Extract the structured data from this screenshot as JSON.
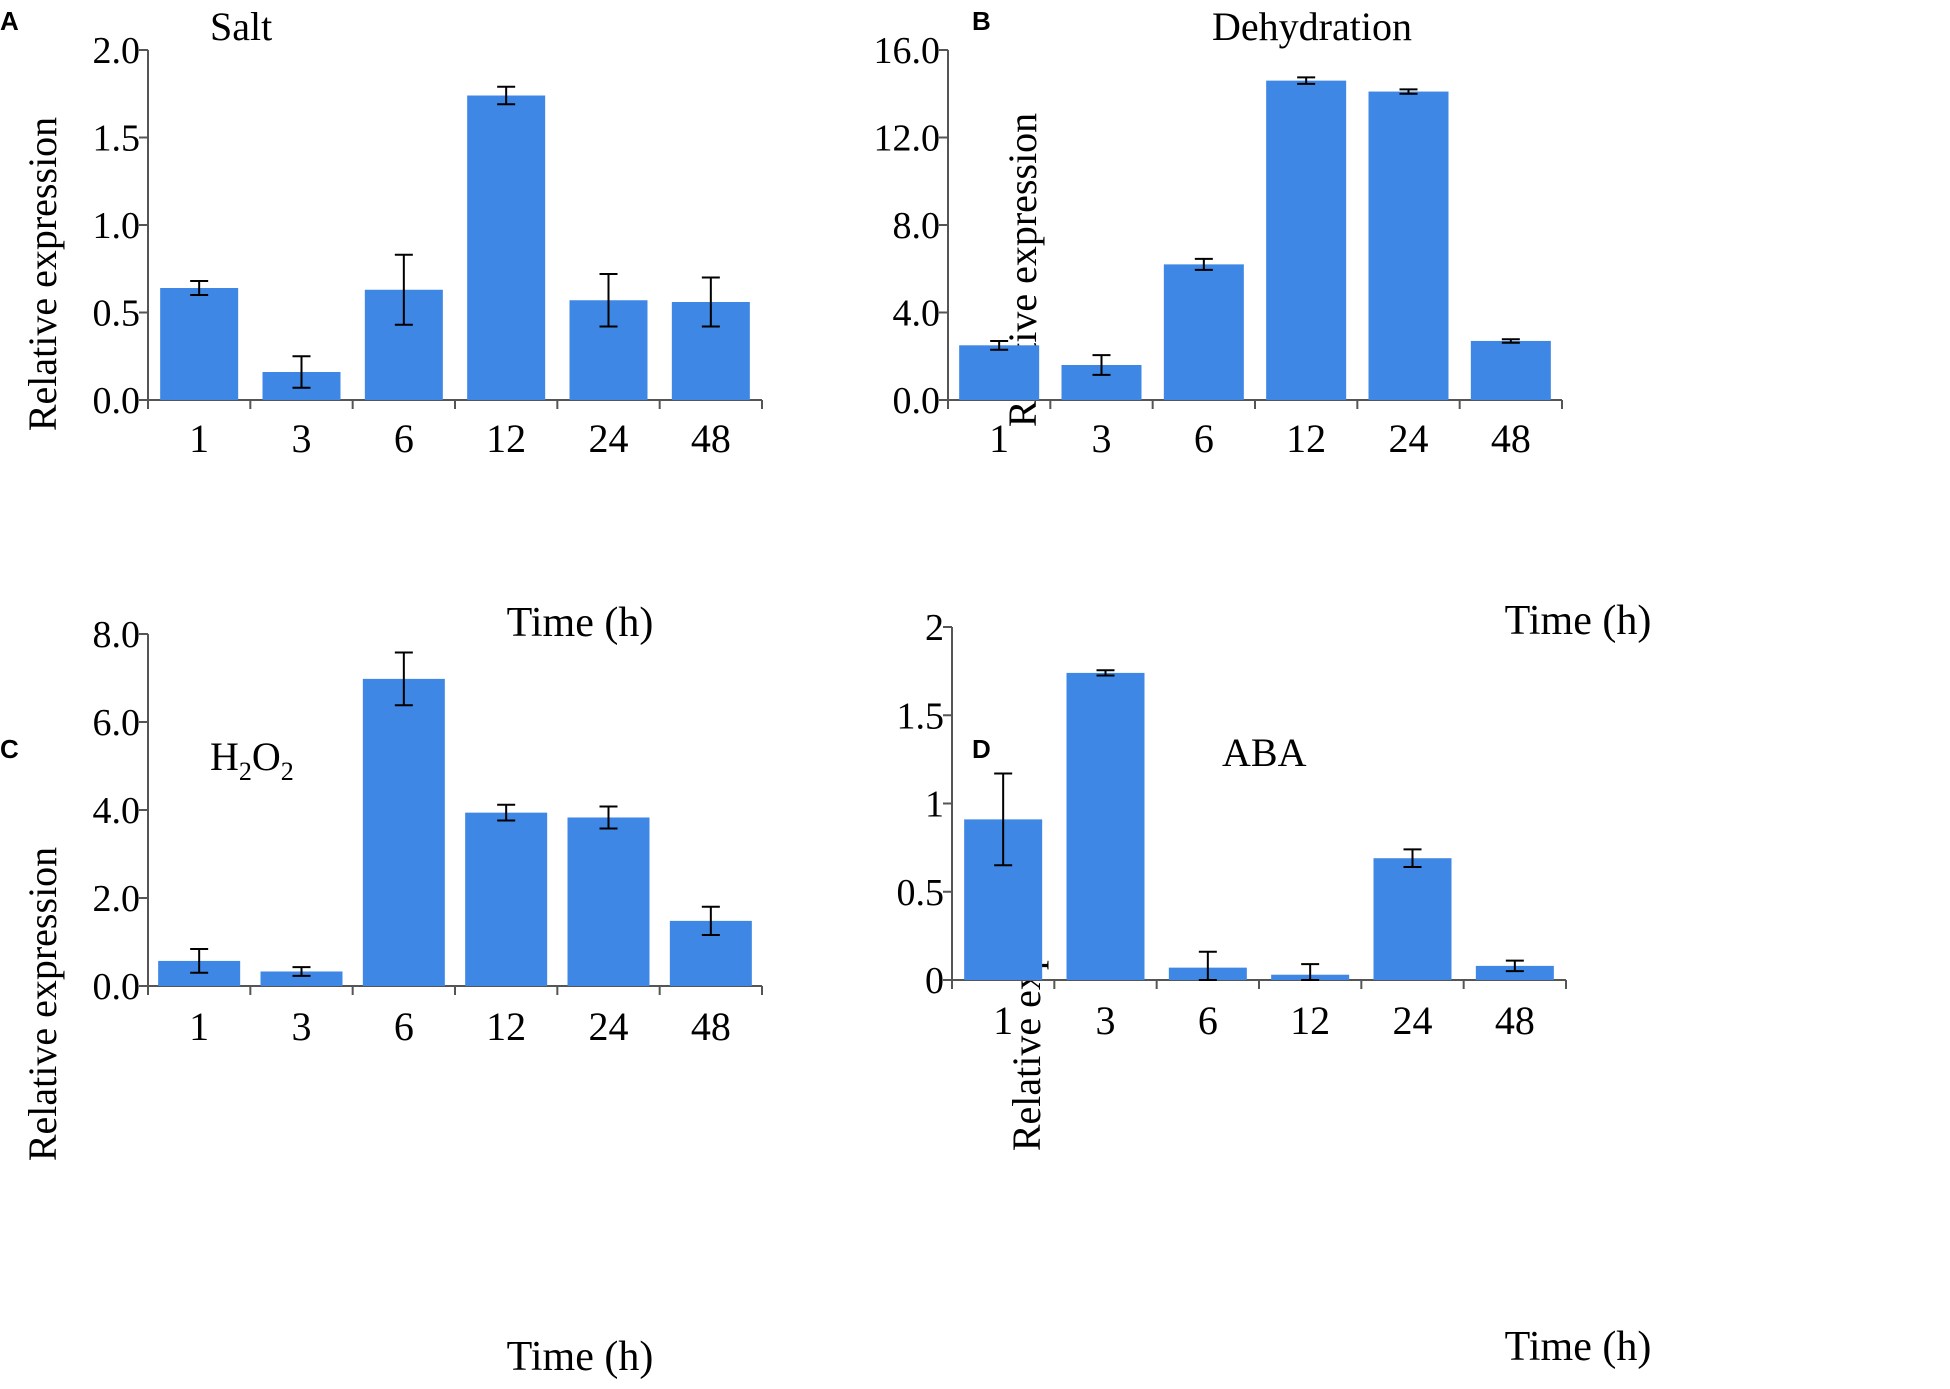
{
  "figure": {
    "bar_color": "#3f87e4"
  },
  "chart_data": [
    {
      "panel": "A",
      "type": "bar",
      "title": "Salt",
      "xlabel": "Time (h)",
      "ylabel": "Relative expression",
      "categories": [
        "1",
        "3",
        "6",
        "12",
        "24",
        "48"
      ],
      "values": [
        0.64,
        0.16,
        0.63,
        1.74,
        0.57,
        0.56
      ],
      "errors": [
        0.04,
        0.09,
        0.2,
        0.05,
        0.15,
        0.14
      ],
      "ylim": [
        0,
        2.0
      ],
      "yticks": [
        0,
        0.5,
        1.0,
        1.5,
        2.0
      ],
      "ytick_labels": [
        "0.0",
        "0.5",
        "1.0",
        "1.5",
        "2.0"
      ]
    },
    {
      "panel": "B",
      "type": "bar",
      "title": "Dehydration",
      "xlabel": "Time (h)",
      "ylabel": "Relative expression",
      "categories": [
        "1",
        "3",
        "6",
        "12",
        "24",
        "48"
      ],
      "values": [
        2.5,
        1.6,
        6.2,
        14.6,
        14.1,
        2.7
      ],
      "errors": [
        0.2,
        0.45,
        0.25,
        0.15,
        0.1,
        0.08
      ],
      "ylim": [
        0,
        16.0
      ],
      "yticks": [
        0,
        4,
        8,
        12,
        16
      ],
      "ytick_labels": [
        "0.0",
        "4.0",
        "8.0",
        "12.0",
        "16.0"
      ]
    },
    {
      "panel": "C",
      "type": "bar",
      "title_main": "H",
      "title_sub1": "2",
      "title_mid": "O",
      "title_sub2": "2",
      "xlabel": "Time (h)",
      "ylabel": "Relative expression",
      "categories": [
        "1",
        "3",
        "6",
        "12",
        "24",
        "48"
      ],
      "values": [
        0.57,
        0.33,
        6.98,
        3.94,
        3.83,
        1.48
      ],
      "errors": [
        0.27,
        0.1,
        0.6,
        0.18,
        0.25,
        0.32
      ],
      "ylim": [
        0,
        8.0
      ],
      "yticks": [
        0,
        2,
        4,
        6,
        8
      ],
      "ytick_labels": [
        "0.0",
        "2.0",
        "4.0",
        "6.0",
        "8.0"
      ]
    },
    {
      "panel": "D",
      "type": "bar",
      "title": "ABA",
      "xlabel": "Time (h)",
      "ylabel": "Relative expression",
      "categories": [
        "1",
        "3",
        "6",
        "12",
        "24",
        "48"
      ],
      "values": [
        0.91,
        1.74,
        0.07,
        0.03,
        0.69,
        0.08
      ],
      "errors": [
        0.26,
        0.015,
        0.09,
        0.06,
        0.05,
        0.03
      ],
      "ylim": [
        0,
        2
      ],
      "yticks": [
        0,
        0.5,
        1,
        1.5,
        2
      ],
      "ytick_labels": [
        "0",
        "0.5",
        "1",
        "1.5",
        "2"
      ]
    }
  ]
}
